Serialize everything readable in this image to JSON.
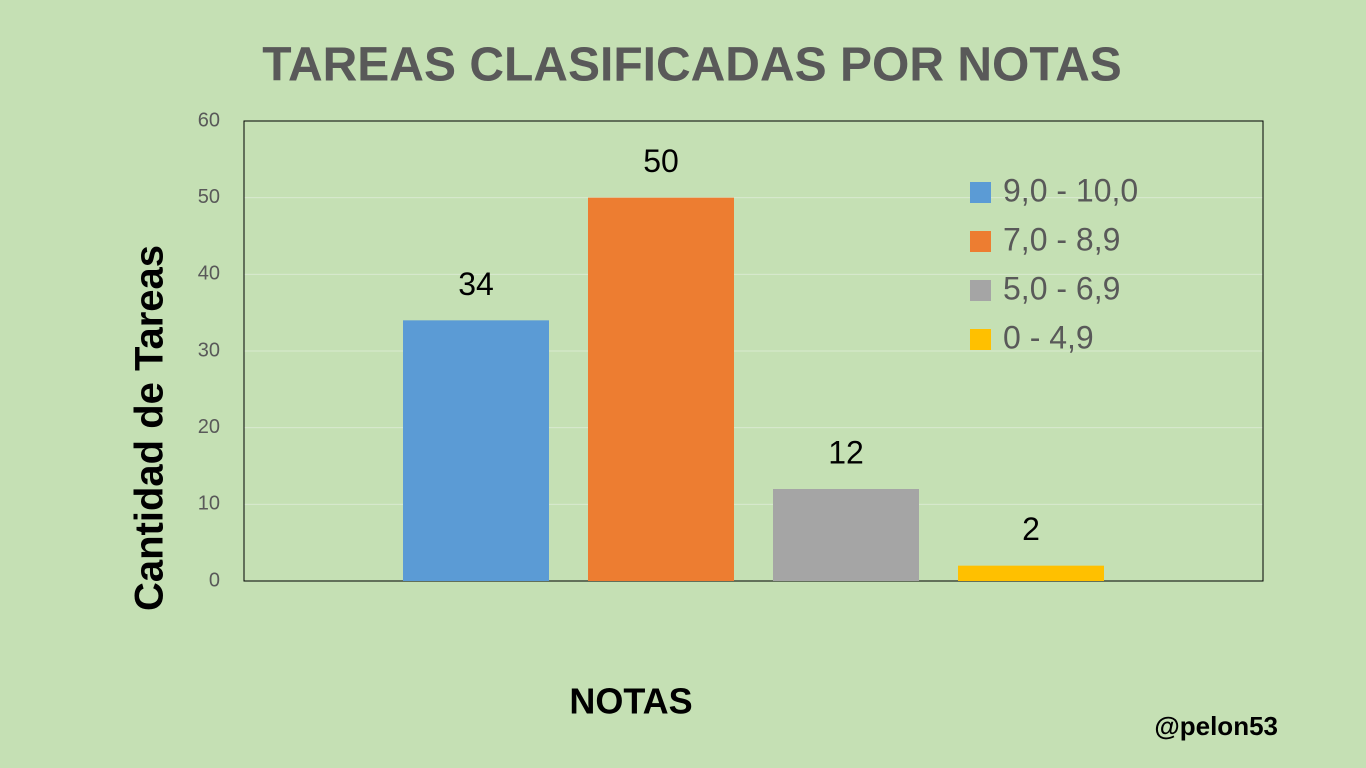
{
  "chart_data": {
    "type": "bar",
    "title": "TAREAS CLASIFICADAS POR NOTAS",
    "x_label": "NOTAS",
    "y_label": "Cantidad de Tareas",
    "annotation": "@pelon53",
    "categories": [
      null
    ],
    "series": [
      {
        "name": "9,0 - 10,0",
        "color": "#5b9bd5",
        "values": [
          34
        ]
      },
      {
        "name": "7,0 - 8,9",
        "color": "#ed7d31",
        "values": [
          50
        ]
      },
      {
        "name": "5,0 - 6,9",
        "color": "#a5a5a5",
        "values": [
          12
        ]
      },
      {
        "name": "0 - 4,9",
        "color": "#ffc000",
        "values": [
          2
        ]
      }
    ],
    "ylim": [
      0,
      60
    ],
    "yticks": [
      0,
      10,
      20,
      30,
      40,
      50,
      60
    ],
    "grid": true,
    "legend": "upper right"
  }
}
